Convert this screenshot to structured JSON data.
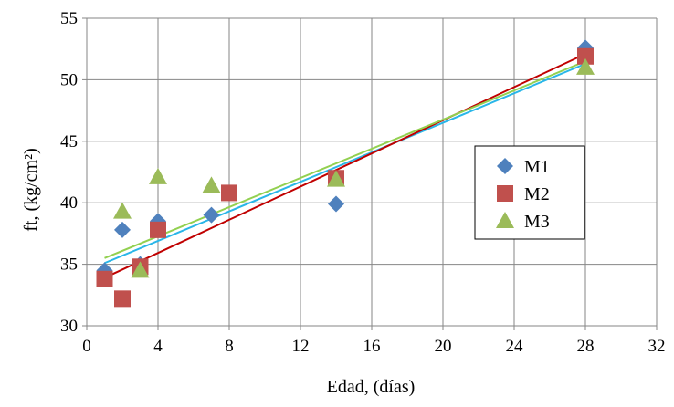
{
  "chart_data": {
    "type": "scatter",
    "xlabel": "Edad, (días)",
    "ylabel": "ft, (kg/cm²)",
    "xlim": [
      0,
      32
    ],
    "ylim": [
      30,
      55
    ],
    "xticks": [
      0,
      4,
      8,
      12,
      16,
      20,
      24,
      28,
      32
    ],
    "yticks": [
      30,
      35,
      40,
      45,
      50,
      55
    ],
    "grid": true,
    "legend_position": "right",
    "series": [
      {
        "name": "M1",
        "marker": "diamond",
        "color": "#4F81BD",
        "trend_color": "#29B6E8",
        "x": [
          1,
          2,
          3,
          4,
          7,
          14,
          28
        ],
        "y": [
          34.5,
          37.8,
          35.0,
          38.5,
          39.0,
          39.9,
          52.6
        ],
        "trend": [
          35.1,
          51.3
        ]
      },
      {
        "name": "M2",
        "marker": "square",
        "color": "#C0504D",
        "trend_color": "#C00000",
        "x": [
          1,
          2,
          3,
          4,
          8,
          14,
          28
        ],
        "y": [
          33.8,
          32.2,
          34.8,
          37.8,
          40.8,
          42.0,
          51.9
        ],
        "trend": [
          33.9,
          52.1
        ]
      },
      {
        "name": "M3",
        "marker": "triangle",
        "color": "#9BBB59",
        "trend_color": "#92D050",
        "x": [
          2,
          3,
          4,
          7,
          14,
          28
        ],
        "y": [
          39.3,
          34.5,
          42.1,
          41.4,
          41.9,
          51.0
        ],
        "trend": [
          35.5,
          51.5
        ]
      }
    ]
  }
}
